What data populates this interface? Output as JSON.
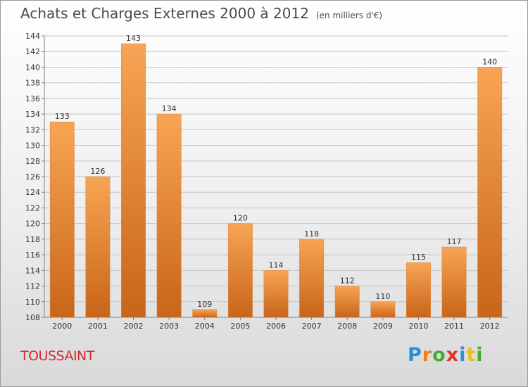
{
  "title": "Achats et Charges Externes 2000 à 2012",
  "unit_note": "(en milliers d'€)",
  "commune": "TOUSSAINT",
  "logo": {
    "letters": [
      "P",
      "r",
      "o",
      "x",
      "i",
      "t",
      "i"
    ],
    "colors": [
      "#2a8fd6",
      "#f07d1a",
      "#44aa33",
      "#e2322a",
      "#2a8fd6",
      "#e8c01e",
      "#44aa33"
    ]
  },
  "colors": {
    "bar_top": "#f8a455",
    "bar_bottom": "#c8651a",
    "grid": "#c4c4c4",
    "axis": "#808080",
    "label": "#333333"
  },
  "chart_data": {
    "type": "bar",
    "title": "Achats et Charges Externes 2000 à 2012",
    "subtitle": "(en milliers d'€)",
    "xlabel": "",
    "ylabel": "",
    "categories": [
      "2000",
      "2001",
      "2002",
      "2003",
      "2004",
      "2005",
      "2006",
      "2007",
      "2008",
      "2009",
      "2010",
      "2011",
      "2012"
    ],
    "values": [
      133,
      126,
      143,
      134,
      109,
      120,
      114,
      118,
      112,
      110,
      115,
      117,
      140
    ],
    "ylim": [
      108,
      144
    ],
    "yticks": [
      108,
      110,
      112,
      114,
      116,
      118,
      120,
      122,
      124,
      126,
      128,
      130,
      132,
      134,
      136,
      138,
      140,
      142,
      144
    ],
    "grid": true,
    "legend": "none"
  }
}
